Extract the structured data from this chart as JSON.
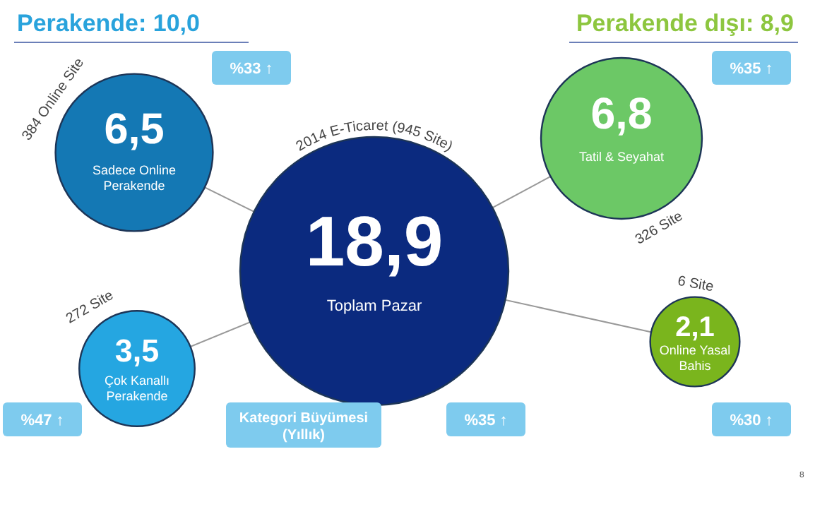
{
  "chart_data": {
    "type": "other",
    "title": "Perakende: 10,0",
    "subtitle": "Perakende dışı: 8,9",
    "categories": [
      "Toplam Pazar",
      "Sadece Online Perakende",
      "Çok Kanallı Perakende",
      "Tatil & Seyahat",
      "Online Yasal Bahis"
    ],
    "values": [
      18.9,
      6.5,
      3.5,
      6.8,
      2.1
    ],
    "value_labels": [
      "18,9",
      "6,5",
      "3,5",
      "6,8",
      "2,1"
    ],
    "colors": [
      "#0b2a7f",
      "#1478b4",
      "#25a6e1",
      "#6cc866",
      "#7ab51d"
    ],
    "annotations": [
      "2014 E-Ticaret (945 Site)",
      "384 Online Site",
      "272 Site",
      "326 Site",
      "6 Site",
      "%33 ↑",
      "%35 ↑",
      "%47 ↑",
      "%35 ↑",
      "%30 ↑",
      "Kategori Büyümesi (Yıllık)",
      "8"
    ]
  }
}
